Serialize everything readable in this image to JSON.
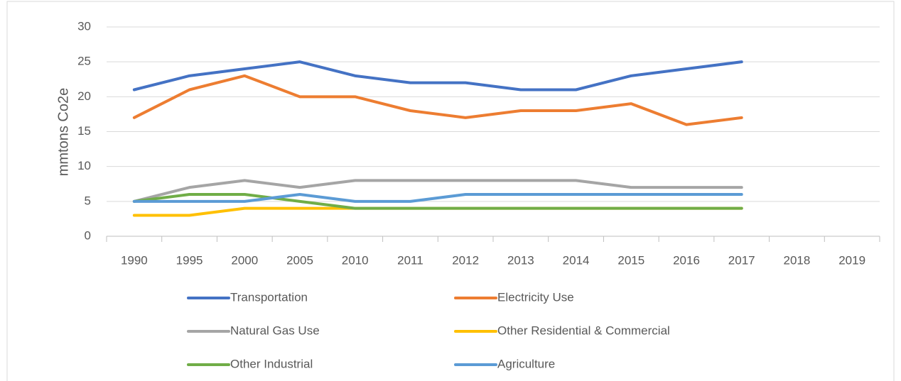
{
  "chart_data": {
    "type": "line",
    "y_label": "mmtons Co2e",
    "categories": [
      "1990",
      "1995",
      "2000",
      "2005",
      "2010",
      "2011",
      "2012",
      "2013",
      "2014",
      "2015",
      "2016",
      "2017",
      "2018",
      "2019"
    ],
    "series": [
      {
        "name": "Transportation",
        "color": "#4472c4",
        "values": [
          21,
          23,
          24,
          25,
          23,
          22,
          22,
          21,
          21,
          23,
          24,
          25,
          null,
          null
        ]
      },
      {
        "name": "Electricity Use",
        "color": "#ed7d31",
        "values": [
          17,
          21,
          23,
          20,
          20,
          18,
          17,
          18,
          18,
          19,
          16,
          17,
          null,
          null
        ]
      },
      {
        "name": "Natural Gas Use",
        "color": "#a5a5a5",
        "values": [
          5,
          7,
          8,
          7,
          8,
          8,
          8,
          8,
          8,
          7,
          7,
          7,
          null,
          null
        ]
      },
      {
        "name": "Other Residential & Commercial",
        "color": "#ffc000",
        "values": [
          3,
          3,
          4,
          4,
          4,
          4,
          4,
          4,
          4,
          4,
          4,
          4,
          null,
          null
        ]
      },
      {
        "name": "Other Industrial",
        "color": "#70ad47",
        "values": [
          5,
          6,
          6,
          5,
          4,
          4,
          4,
          4,
          4,
          4,
          4,
          4,
          null,
          null
        ]
      },
      {
        "name": "Agriculture",
        "color": "#5b9bd5",
        "values": [
          5,
          5,
          5,
          6,
          5,
          5,
          6,
          6,
          6,
          6,
          6,
          6,
          null,
          null
        ]
      }
    ],
    "ylim": [
      0,
      30
    ],
    "yticks": [
      0,
      5,
      10,
      15,
      20,
      25,
      30
    ],
    "grid": true,
    "legend": "bottom"
  }
}
